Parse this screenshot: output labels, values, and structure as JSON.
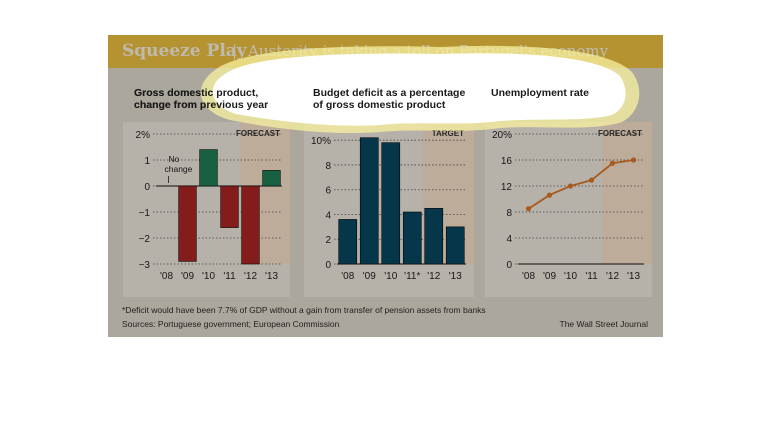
{
  "header": {
    "kicker": "Squeeze Play",
    "separator": "|",
    "headline": "Austerity is taking a toll on Portugal's economy"
  },
  "colors": {
    "header_bg": "#e9bd3f",
    "panel_bg": "#e9e3d9",
    "forecast_bg": "#f3ddc6",
    "gdp_positive": "#1d7a53",
    "gdp_negative": "#a82523",
    "deficit_bar": "#07465e",
    "unemployment_line": "#d8742a",
    "highlight": "#f7ef6a"
  },
  "chart_data": [
    {
      "type": "bar",
      "title": "Gross domestic product, change from previous year",
      "categories": [
        "'08",
        "'09",
        "'10",
        "'11",
        "'12",
        "'13"
      ],
      "values": [
        0,
        -2.9,
        1.4,
        -1.6,
        -3.0,
        0.6
      ],
      "ylim": [
        -3,
        2
      ],
      "yticks": [
        "2%",
        "1",
        "0",
        "−1",
        "−2",
        "−3"
      ],
      "shaded_label": "FORECAST",
      "annotation": [
        "No",
        "change"
      ],
      "grid": true
    },
    {
      "type": "bar",
      "title": "Budget deficit as a percentage of gross domestic product",
      "categories": [
        "'08",
        "'09",
        "'10",
        "'11",
        "'12",
        "'13"
      ],
      "category_marks": [
        "",
        "",
        "",
        "*",
        "",
        ""
      ],
      "values": [
        3.6,
        10.2,
        9.8,
        4.2,
        4.5,
        3.0
      ],
      "ylim": [
        0,
        10.5
      ],
      "yticks": [
        "10%",
        "8",
        "6",
        "4",
        "2",
        "0"
      ],
      "shaded_label": "TARGET",
      "grid": true
    },
    {
      "type": "line",
      "title": "Unemployment rate",
      "categories": [
        "'08",
        "'09",
        "'10",
        "'11",
        "'12",
        "'13"
      ],
      "values": [
        8.5,
        10.6,
        12.0,
        12.9,
        15.5,
        16.0
      ],
      "ylim": [
        0,
        20
      ],
      "yticks": [
        "20%",
        "16",
        "12",
        "8",
        "4",
        "0"
      ],
      "shaded_label": "FORECAST",
      "grid": true
    }
  ],
  "footer": {
    "note": "*Deficit would have been 7.7% of GDP without a gain from transfer of pension assets from banks",
    "sources": "Sources: Portuguese government; European Commission",
    "credit": "The Wall Street Journal"
  }
}
